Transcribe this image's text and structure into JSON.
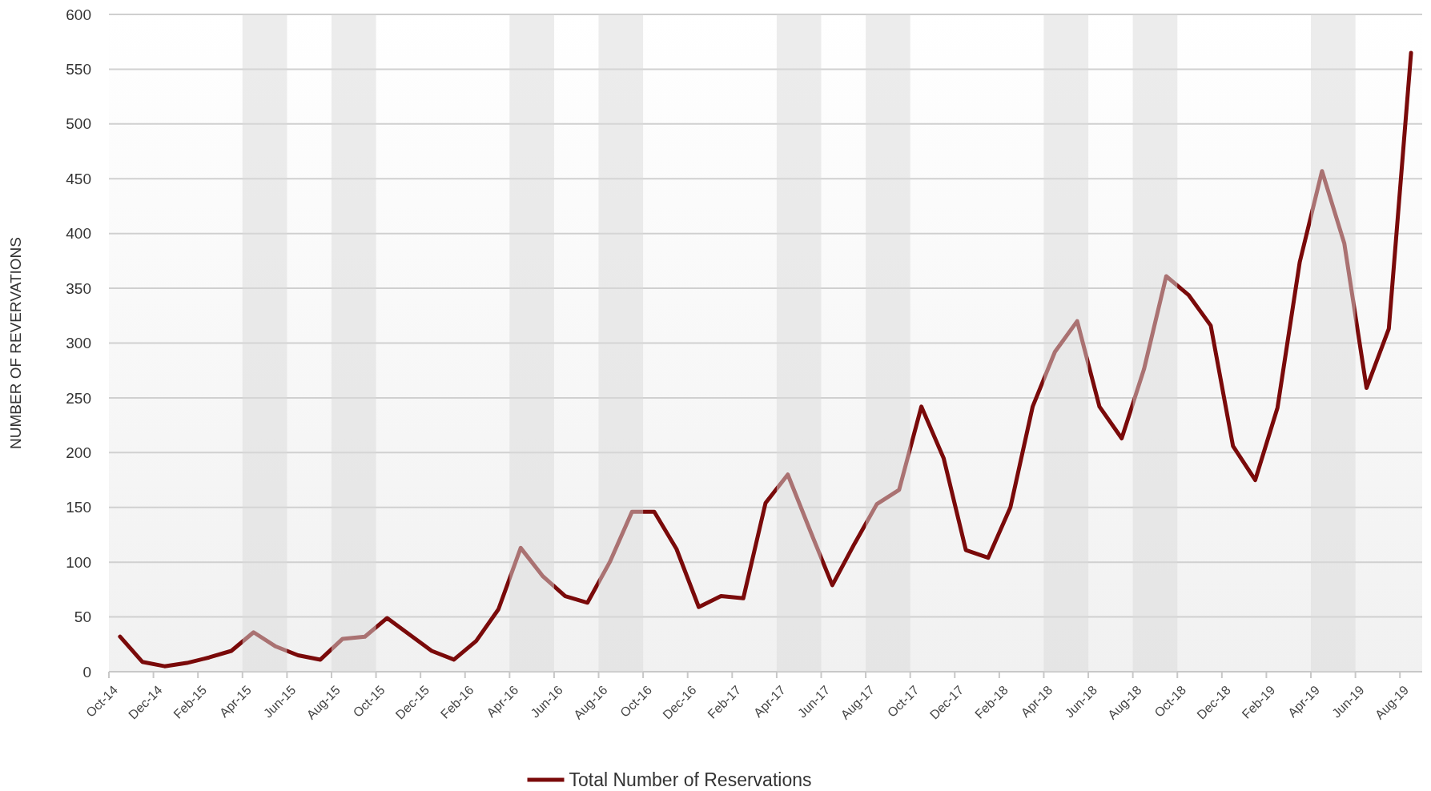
{
  "chart_data": {
    "type": "line",
    "ylabel": "NUMBER OF REVERVATIONS",
    "categories": [
      "Oct-14",
      null,
      "Dec-14",
      null,
      "Feb-15",
      null,
      "Apr-15",
      null,
      "Jun-15",
      null,
      "Aug-15",
      null,
      "Oct-15",
      null,
      "Dec-15",
      null,
      "Feb-16",
      null,
      "Apr-16",
      null,
      "Jun-16",
      null,
      "Aug-16",
      null,
      "Oct-16",
      null,
      "Dec-16",
      null,
      "Feb-17",
      null,
      "Apr-17",
      null,
      "Jun-17",
      null,
      "Aug-17",
      null,
      "Oct-17",
      null,
      "Dec-17",
      null,
      "Feb-18",
      null,
      "Apr-18",
      null,
      "Jun-18",
      null,
      "Aug-18",
      null,
      "Oct-18",
      null,
      "Dec-18",
      null,
      "Feb-19",
      null,
      "Apr-19",
      null,
      "Jun-19",
      null,
      "Aug-19"
    ],
    "series": [
      {
        "name": "Total Number of Reservations",
        "color": "#7a0a0a",
        "values": [
          32,
          9,
          5,
          8,
          13,
          19,
          36,
          23,
          15,
          11,
          30,
          32,
          49,
          34,
          19,
          11,
          28,
          57,
          113,
          87,
          69,
          63,
          100,
          146,
          146,
          112,
          59,
          69,
          67,
          154,
          180,
          129,
          79,
          117,
          153,
          166,
          242,
          195,
          111,
          104,
          150,
          242,
          292,
          320,
          242,
          213,
          276,
          361,
          344,
          316,
          206,
          175,
          241,
          374,
          457,
          391,
          259,
          313,
          565
        ]
      }
    ],
    "ylim": [
      0,
      600
    ],
    "yticks": [
      0,
      50,
      100,
      150,
      200,
      250,
      300,
      350,
      400,
      450,
      500,
      550,
      600
    ],
    "grid": "y",
    "legend": "bottom",
    "marker": "none",
    "line_style": "solid",
    "bands": [
      {
        "axis": "x",
        "from": "Apr-15",
        "to": "Jun-15",
        "color": "#d9d9d9"
      },
      {
        "axis": "x",
        "from": "Aug-15",
        "to": "Oct-15",
        "color": "#d9d9d9"
      },
      {
        "axis": "x",
        "from": "Apr-16",
        "to": "Jun-16",
        "color": "#d9d9d9"
      },
      {
        "axis": "x",
        "from": "Aug-16",
        "to": "Oct-16",
        "color": "#d9d9d9"
      },
      {
        "axis": "x",
        "from": "Apr-17",
        "to": "Jun-17",
        "color": "#d9d9d9"
      },
      {
        "axis": "x",
        "from": "Aug-17",
        "to": "Oct-17",
        "color": "#d9d9d9"
      },
      {
        "axis": "x",
        "from": "Apr-18",
        "to": "Jun-18",
        "color": "#d9d9d9"
      },
      {
        "axis": "x",
        "from": "Aug-18",
        "to": "Oct-18",
        "color": "#d9d9d9"
      },
      {
        "axis": "x",
        "from": "Apr-19",
        "to": "Jun-19",
        "color": "#d9d9d9"
      }
    ]
  }
}
